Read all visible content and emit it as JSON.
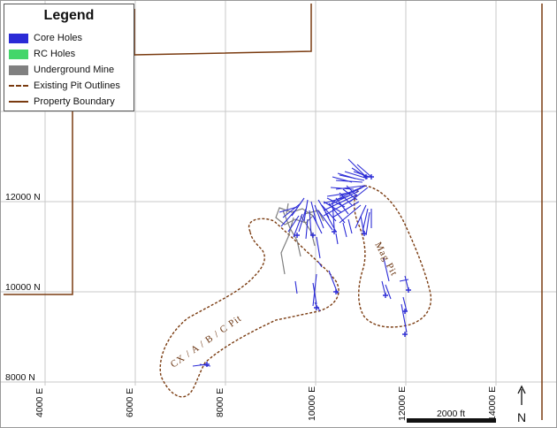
{
  "legend": {
    "title": "Legend",
    "items": [
      {
        "label": "Core Holes",
        "symbol": "fill",
        "color": "#2b2bd6"
      },
      {
        "label": "RC Holes",
        "symbol": "fill",
        "color": "#44d66a"
      },
      {
        "label": "Underground Mine",
        "symbol": "fill",
        "color": "#808080"
      },
      {
        "label": "Existing Pit Outlines",
        "symbol": "dashed-line",
        "color": "#7a3b10"
      },
      {
        "label": "Property Boundary",
        "symbol": "solid-line",
        "color": "#7a3b10"
      }
    ]
  },
  "grid": {
    "x_labels": [
      "4000 E",
      "6000 E",
      "8000 E",
      "10000 E",
      "12000 E",
      "14000 E"
    ],
    "y_labels": [
      "12000 N",
      "10000 N",
      "8000 N"
    ]
  },
  "pits": {
    "cx_label": "CX / A / B / C  Pit",
    "mag_label": "Mag  Pit"
  },
  "scale_bar": {
    "label": "2000 ft"
  },
  "north_arrow": {
    "label": "N"
  },
  "colors": {
    "core_holes": "#2b2bd6",
    "underground": "#808080",
    "boundary": "#7a3b10",
    "grid": "#c8c8c8"
  }
}
